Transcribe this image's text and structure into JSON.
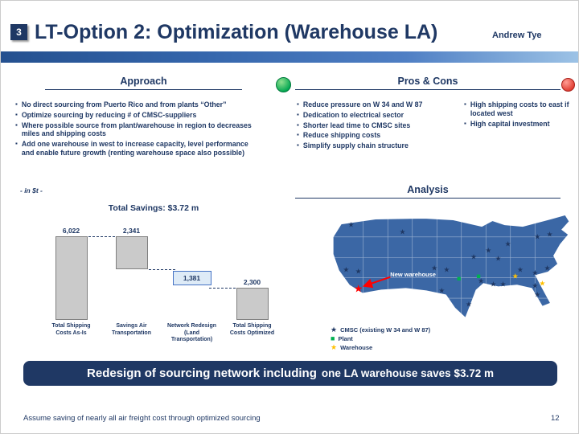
{
  "slide": {
    "badge": "3",
    "title": "LT-Option 2: Optimization (Warehouse LA)",
    "author": "Andrew Tye",
    "banner_part1": "Redesign of sourcing network including",
    "banner_part2": "one LA warehouse saves $3.72 m",
    "footnote": "Assume saving of nearly all air freight cost through optimized sourcing",
    "page_number": "12"
  },
  "approach": {
    "header": "Approach",
    "bullets": [
      "No direct sourcing from Puerto Rico and from plants “Other”",
      "Optimize sourcing by reducing # of CMSC-suppliers",
      "Where possible source from plant/warehouse in region to decreases miles and shipping costs",
      "Add one warehouse in west to increase capacity, level performance and enable future growth (renting warehouse space also possible)"
    ]
  },
  "pros_cons": {
    "header": "Pros & Cons",
    "pros": [
      "Reduce pressure on W 34 and W 87",
      "Dedication to electrical sector",
      "Shorter lead time to CMSC sites",
      "Reduce shipping costs",
      "Simplify supply chain structure"
    ],
    "cons": [
      "High shipping costs to east if located west",
      "High capital investment"
    ]
  },
  "analysis": {
    "header": "Analysis",
    "map_label": "New warehouse",
    "legend": [
      {
        "shape": "star",
        "color": "#1F3864",
        "label": "CMSC (existing W 34 and W 87)"
      },
      {
        "shape": "square",
        "color": "#00B050",
        "label": "Plant"
      },
      {
        "shape": "star",
        "color": "#FFC000",
        "label": "Warehouse"
      }
    ]
  },
  "chart_data": {
    "type": "bar",
    "subtype": "waterfall",
    "title": "Total Savings: $3.72 m",
    "unit_note": "- in $t -",
    "categories": [
      "Total Shipping Costs As-Is",
      "Savings Air Transportation",
      "Network Redesign (Land Transportation)",
      "Total Shipping Costs Optimized"
    ],
    "values": [
      6022,
      -2341,
      -1381,
      2300
    ],
    "bars": [
      {
        "label": "6,022",
        "start": 0,
        "end": 6022,
        "style": "bar"
      },
      {
        "label": "2,341",
        "start": 3681,
        "end": 6022,
        "style": "bar"
      },
      {
        "label": "1,381",
        "start": 2300,
        "end": 3681,
        "style": "box"
      },
      {
        "label": "2,300",
        "start": 0,
        "end": 2300,
        "style": "bar"
      }
    ],
    "connectors": [
      {
        "level": 6022,
        "from": 0,
        "to": 1
      },
      {
        "level": 3681,
        "from": 1,
        "to": 2
      },
      {
        "level": 2300,
        "from": 2,
        "to": 3
      }
    ],
    "ylim": [
      0,
      6500
    ],
    "bar_color": "#CACACA",
    "highlight_box_border": "#4472C4"
  },
  "map": {
    "markers": [
      {
        "x": 10,
        "y": 12,
        "shape": "star",
        "color": "#1F3864"
      },
      {
        "x": 31,
        "y": 18,
        "shape": "star",
        "color": "#1F3864"
      },
      {
        "x": 86,
        "y": 22,
        "shape": "star",
        "color": "#1F3864"
      },
      {
        "x": 91,
        "y": 20,
        "shape": "star",
        "color": "#1F3864"
      },
      {
        "x": 74,
        "y": 28,
        "shape": "star",
        "color": "#1F3864"
      },
      {
        "x": 66,
        "y": 34,
        "shape": "star",
        "color": "#1F3864"
      },
      {
        "x": 60,
        "y": 39,
        "shape": "star",
        "color": "#1F3864"
      },
      {
        "x": 70,
        "y": 41,
        "shape": "star",
        "color": "#1F3864"
      },
      {
        "x": 44,
        "y": 49,
        "shape": "star",
        "color": "#1F3864"
      },
      {
        "x": 49,
        "y": 50,
        "shape": "star",
        "color": "#1F3864"
      },
      {
        "x": 8,
        "y": 50,
        "shape": "star",
        "color": "#1F3864"
      },
      {
        "x": 13,
        "y": 52,
        "shape": "star",
        "color": "#1F3864"
      },
      {
        "x": 79,
        "y": 50,
        "shape": "star",
        "color": "#1F3864"
      },
      {
        "x": 90,
        "y": 49,
        "shape": "star",
        "color": "#1F3864"
      },
      {
        "x": 85,
        "y": 53,
        "shape": "star",
        "color": "#1F3864"
      },
      {
        "x": 68,
        "y": 63,
        "shape": "star",
        "color": "#1F3864"
      },
      {
        "x": 72,
        "y": 63,
        "shape": "star",
        "color": "#1F3864"
      },
      {
        "x": 63,
        "y": 60,
        "shape": "star",
        "color": "#1F3864"
      },
      {
        "x": 86,
        "y": 72,
        "shape": "star",
        "color": "#1F3864"
      },
      {
        "x": 85,
        "y": 64,
        "shape": "star",
        "color": "#1F3864"
      },
      {
        "x": 58,
        "y": 80,
        "shape": "star",
        "color": "#1F3864"
      },
      {
        "x": 47,
        "y": 68,
        "shape": "star",
        "color": "#1F3864"
      },
      {
        "x": 77,
        "y": 56,
        "shape": "star",
        "color": "#FFC000"
      },
      {
        "x": 88,
        "y": 62,
        "shape": "star",
        "color": "#FFC000"
      },
      {
        "x": 62,
        "y": 56,
        "shape": "square",
        "color": "#00B050"
      },
      {
        "x": 54,
        "y": 58,
        "shape": "square",
        "color": "#00B050"
      },
      {
        "x": 13,
        "y": 66,
        "shape": "star",
        "color": "#FF0000",
        "size": 13,
        "name": "new-warehouse-marker"
      }
    ]
  },
  "colors": {
    "navy": "#1F3864",
    "map_fill": "#3B67A5",
    "pros_dot": "#00A650",
    "cons_dot": "#E03C31"
  }
}
